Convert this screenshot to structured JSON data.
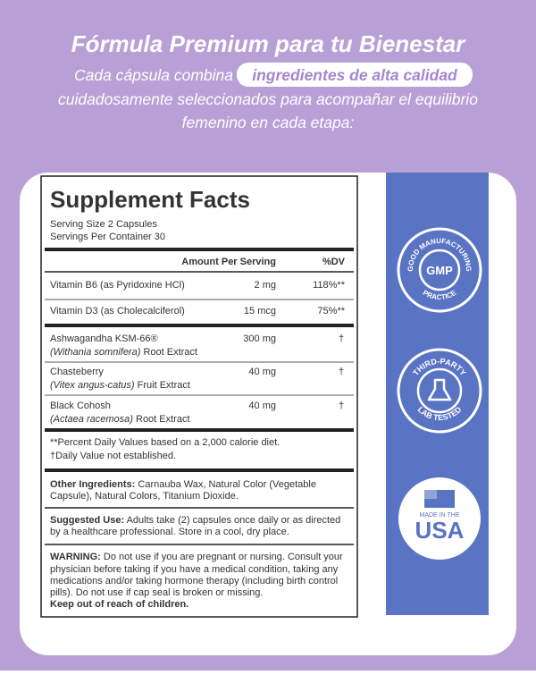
{
  "header": {
    "title": "Fórmula Premium para tu Bienestar",
    "subtitle_start": "Cada cápsula combina",
    "subtitle_highlight": "ingredientes de alta calidad",
    "subtitle_lines": [
      "cuidadosamente seleccionados para acompañar el equilibrio",
      "femenino en cada etapa:"
    ]
  },
  "facts": {
    "title": "Supplement Facts",
    "serving_size": "Serving Size 2 Capsules",
    "servings": "Servings Per Container 30",
    "col_amount": "Amount Per Serving",
    "col_dv": "%DV",
    "rows": [
      {
        "name": "Vitamin B6 (as Pyridoxine HCl)",
        "amount": "2 mg",
        "dv": "118%**"
      },
      {
        "name": "Vitamin D3 (as Cholecalciferol)",
        "amount": "15 mcg",
        "dv": "75%**"
      },
      {
        "name": "Ashwagandha KSM-66®",
        "latin": "(Withania somnifera)",
        "part": " Root Extract",
        "amount": "300 mg",
        "dv": "†"
      },
      {
        "name": "Chasteberry",
        "latin": "(Vitex angus-catus)",
        "part": " Fruit Extract",
        "amount": "40 mg",
        "dv": "†"
      },
      {
        "name": "Black Cohosh",
        "latin": "(Actaea racemosa)",
        "part": " Root Extract",
        "amount": "40 mg",
        "dv": "†"
      }
    ],
    "footnotes": [
      "**Percent Daily Values based on a 2,000 calorie diet.",
      "†Daily Value not established."
    ],
    "other_label": "Other Ingredients:",
    "other_lines": [
      " Carnauba Wax, Natural Color (Vegetable",
      "Capsule), Natural Colors, Titanium Dioxide."
    ],
    "use_label": "Suggested Use:",
    "use_lines": [
      " Adults take (2) capsules once daily or as directed",
      "by a healthcare professional. Store in a cool, dry place."
    ],
    "warning_label": "WARNING:",
    "warning_lines": [
      " Do not use if you are pregnant or nursing. Consult your",
      "physician before taking if you have a medical condition, taking any",
      "medications and/or taking hormone therapy (including birth control",
      "pills). Do not use if cap seal is broken or missing."
    ],
    "warning_bold": "Keep out of reach of children."
  },
  "badges": {
    "gmp_top": "GOOD MANUFACTURING",
    "gmp_center": "GMP",
    "gmp_bottom": "PRACTICE",
    "lab_top": "THIRD-PARTY",
    "lab_bottom": "LAB TESTED",
    "usa_small": "MADE IN THE",
    "usa_big": "USA"
  }
}
